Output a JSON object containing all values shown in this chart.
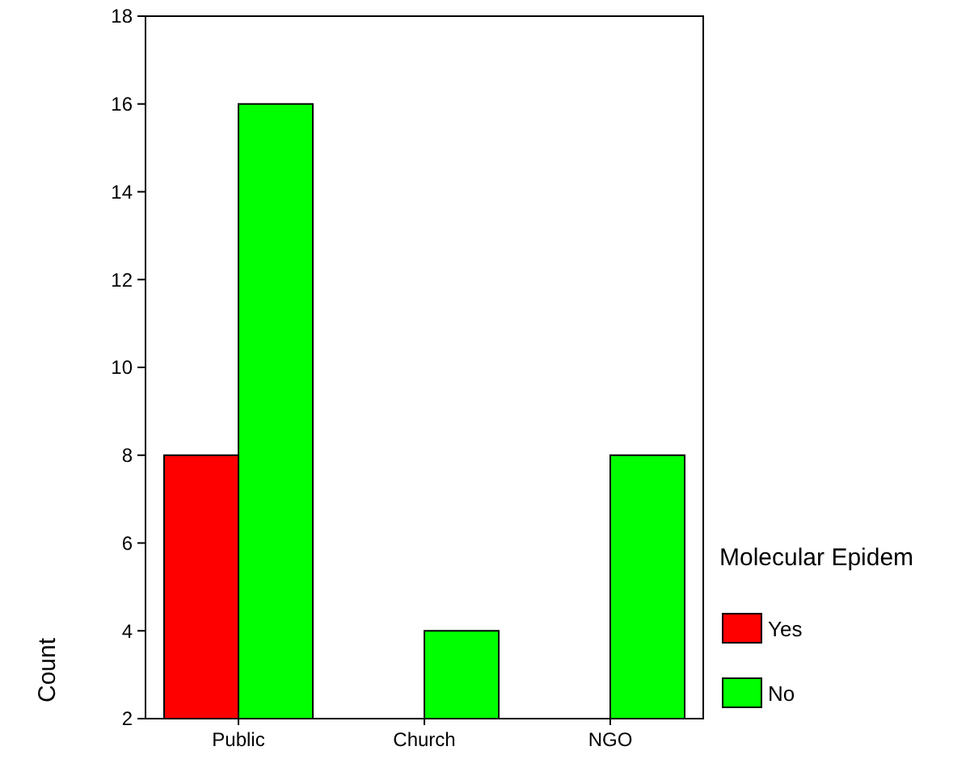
{
  "chart_data": {
    "type": "bar",
    "ylabel": "Count",
    "legend_title": "Molecular Epidem",
    "categories": [
      "Public",
      "Church",
      "NGO"
    ],
    "series": [
      {
        "name": "Yes",
        "color": "#ff0000",
        "values": [
          8,
          null,
          null
        ]
      },
      {
        "name": "No",
        "color": "#00ff00",
        "values": [
          16,
          4,
          8
        ]
      }
    ],
    "ylim": [
      2,
      18
    ],
    "yticks": [
      2,
      4,
      6,
      8,
      10,
      12,
      14,
      16,
      18
    ],
    "grid": false,
    "legend": "right"
  }
}
